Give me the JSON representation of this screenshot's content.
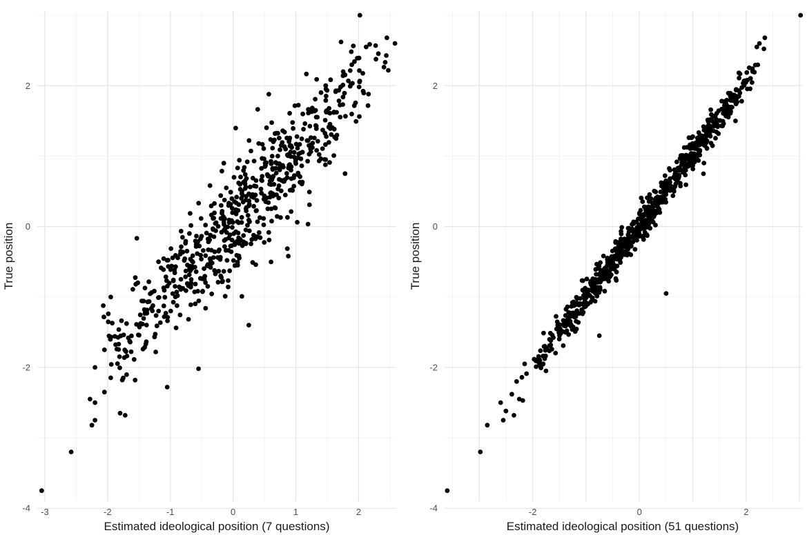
{
  "chart_data": [
    {
      "type": "scatter",
      "panel": "left",
      "xlabel": "Estimated ideological position (7 questions)",
      "ylabel": "True position",
      "xlim": [
        -3.12,
        2.6
      ],
      "ylim": [
        -3.9,
        3.06
      ],
      "xticks": [
        -3,
        -2,
        -1,
        0,
        1,
        2
      ],
      "yticks": [
        -4,
        -2,
        0,
        2
      ],
      "grid": true,
      "point_color": "#000000",
      "points": {
        "highlighted": [
          [
            -3.05,
            -3.75
          ],
          [
            -2.58,
            -3.2
          ],
          [
            -2.25,
            -2.82
          ],
          [
            -2.2,
            -2.75
          ],
          [
            -2.28,
            -2.45
          ],
          [
            -2.2,
            -2.5
          ],
          [
            -2.2,
            -2.0
          ],
          [
            -2.05,
            -2.35
          ],
          [
            -1.8,
            -2.65
          ],
          [
            -1.72,
            -2.68
          ],
          [
            -1.75,
            -2.15
          ],
          [
            -2.05,
            -1.75
          ],
          [
            -1.95,
            -1.0
          ],
          [
            -1.05,
            -2.28
          ],
          [
            -0.55,
            -2.02
          ],
          [
            2.02,
            3.0
          ],
          [
            2.45,
            2.68
          ],
          [
            2.58,
            2.6
          ],
          [
            2.12,
            2.55
          ],
          [
            1.72,
            2.62
          ],
          [
            0.88,
            -0.42
          ],
          [
            0.25,
            -1.4
          ]
        ],
        "clusters": [
          {
            "x": -1.6,
            "y": -1.55,
            "sd": 0.3,
            "n": 45,
            "r": 0.6
          },
          {
            "x": -1.0,
            "y": -0.95,
            "sd": 0.4,
            "n": 95,
            "r": 0.65
          },
          {
            "x": -0.4,
            "y": -0.4,
            "sd": 0.45,
            "n": 130,
            "r": 0.6
          },
          {
            "x": 0.2,
            "y": 0.3,
            "sd": 0.5,
            "n": 150,
            "r": 0.6
          },
          {
            "x": 0.75,
            "y": 0.85,
            "sd": 0.45,
            "n": 130,
            "r": 0.6
          },
          {
            "x": 1.35,
            "y": 1.5,
            "sd": 0.4,
            "n": 85,
            "r": 0.6
          },
          {
            "x": 1.9,
            "y": 2.05,
            "sd": 0.3,
            "n": 40,
            "r": 0.5
          }
        ]
      }
    },
    {
      "type": "scatter",
      "panel": "right",
      "xlabel": "Estimated ideological position (51 questions)",
      "ylabel": "True position",
      "xlim": [
        -3.65,
        3.05
      ],
      "ylim": [
        -3.9,
        3.06
      ],
      "xticks": [
        -2,
        0,
        2
      ],
      "yticks": [
        -4,
        -2,
        0,
        2
      ],
      "grid": true,
      "point_color": "#000000",
      "points": {
        "highlighted": [
          [
            -3.6,
            -3.75
          ],
          [
            -2.98,
            -3.2
          ],
          [
            -2.85,
            -2.82
          ],
          [
            -2.55,
            -2.75
          ],
          [
            -2.5,
            -2.62
          ],
          [
            -2.6,
            -2.5
          ],
          [
            -2.35,
            -2.68
          ],
          [
            -2.25,
            -2.45
          ],
          [
            -2.3,
            -2.2
          ],
          [
            -2.15,
            -1.95
          ],
          [
            -1.75,
            -2.05
          ],
          [
            3.02,
            3.0
          ],
          [
            2.35,
            2.68
          ],
          [
            2.25,
            2.6
          ],
          [
            2.2,
            2.55
          ],
          [
            0.5,
            -0.95
          ],
          [
            1.2,
            0.75
          ],
          [
            1.8,
            1.5
          ],
          [
            -0.75,
            -1.55
          ],
          [
            -0.25,
            -0.35
          ]
        ],
        "clusters": [
          {
            "x": -1.65,
            "y": -1.65,
            "sd": 0.3,
            "n": 50,
            "r": 0.95
          },
          {
            "x": -1.0,
            "y": -1.0,
            "sd": 0.42,
            "n": 120,
            "r": 0.96
          },
          {
            "x": -0.35,
            "y": -0.35,
            "sd": 0.45,
            "n": 190,
            "r": 0.97
          },
          {
            "x": 0.3,
            "y": 0.3,
            "sd": 0.45,
            "n": 190,
            "r": 0.97
          },
          {
            "x": 0.9,
            "y": 0.95,
            "sd": 0.4,
            "n": 140,
            "r": 0.96
          },
          {
            "x": 1.5,
            "y": 1.55,
            "sd": 0.32,
            "n": 70,
            "r": 0.95
          },
          {
            "x": 2.0,
            "y": 2.1,
            "sd": 0.25,
            "n": 30,
            "r": 0.95
          }
        ]
      }
    }
  ]
}
